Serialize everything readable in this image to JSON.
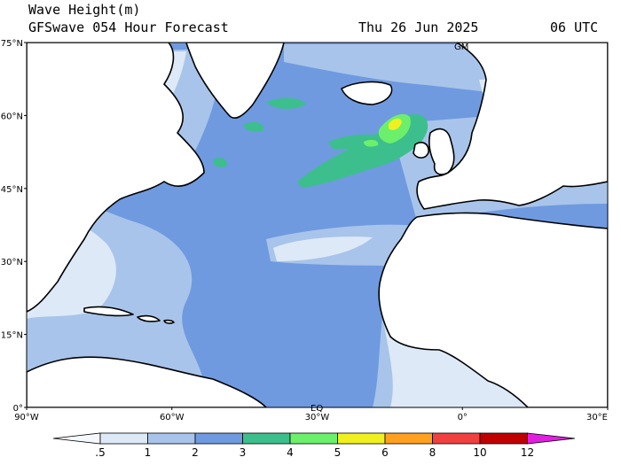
{
  "header": {
    "title": "Wave Height(m)",
    "subtitle": "GFSwave 054 Hour Forecast",
    "date": "Thu 26 Jun 2025",
    "time": "06 UTC"
  },
  "map": {
    "region": "North Atlantic Ocean",
    "lon_range": [
      -90,
      30
    ],
    "lat_range": [
      0,
      75
    ],
    "lat_ticks": [
      {
        "value": 75,
        "label": "75°N"
      },
      {
        "value": 60,
        "label": "60°N"
      },
      {
        "value": 45,
        "label": "45°N"
      },
      {
        "value": 30,
        "label": "30°N"
      },
      {
        "value": 15,
        "label": "15°N"
      },
      {
        "value": 0,
        "label": "0°"
      }
    ],
    "lon_ticks": [
      {
        "value": -90,
        "label": "90°W"
      },
      {
        "value": -60,
        "label": "60°W"
      },
      {
        "value": -30,
        "label": "30°W"
      },
      {
        "value": 0,
        "label": "0°"
      },
      {
        "value": 30,
        "label": "30°E"
      }
    ],
    "markers": [
      "GM",
      "EQ"
    ],
    "land_color": "#ffffff",
    "coast_color": "#000000"
  },
  "colorbar": {
    "labels": [
      ".5",
      "1",
      "2",
      "3",
      "4",
      "5",
      "6",
      "8",
      "10",
      "12"
    ],
    "colors": [
      "#dde9f7",
      "#a9c4ea",
      "#6f9ae0",
      "#3cbf8c",
      "#6cf06c",
      "#f0f020",
      "#ffa020",
      "#f04040",
      "#c00000",
      "#e020e0"
    ],
    "first_color": "#f5f8fc"
  }
}
